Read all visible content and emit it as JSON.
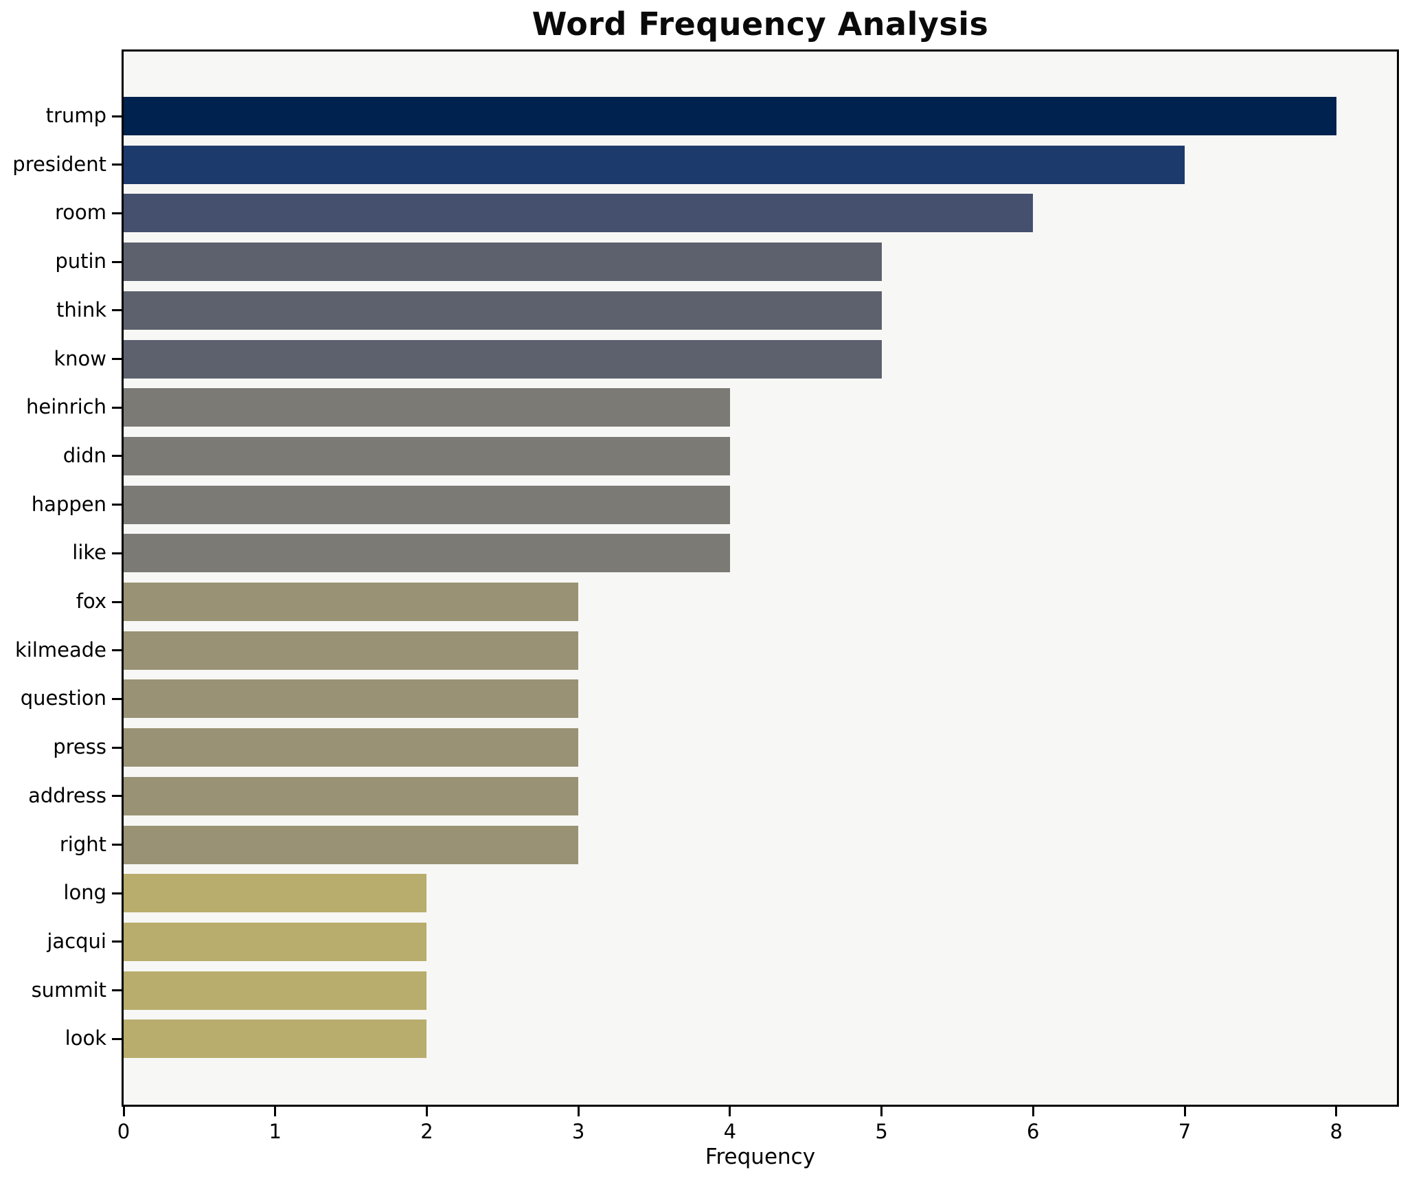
{
  "chart_data": {
    "type": "bar",
    "orientation": "horizontal",
    "title": "Word Frequency Analysis",
    "xlabel": "Frequency",
    "ylabel": "",
    "categories": [
      "trump",
      "president",
      "room",
      "putin",
      "think",
      "know",
      "heinrich",
      "didn",
      "happen",
      "like",
      "fox",
      "kilmeade",
      "question",
      "press",
      "address",
      "right",
      "long",
      "jacqui",
      "summit",
      "look"
    ],
    "values": [
      8,
      7,
      6,
      5,
      5,
      5,
      4,
      4,
      4,
      4,
      3,
      3,
      3,
      3,
      3,
      3,
      2,
      2,
      2,
      2
    ],
    "bar_colors": [
      "#00224e",
      "#1d3a6d",
      "#454f6e",
      "#5c616d",
      "#5c616d",
      "#5c616d",
      "#7b7a75",
      "#7b7a75",
      "#7b7a75",
      "#7b7a75",
      "#999274",
      "#999274",
      "#999274",
      "#999274",
      "#999274",
      "#999274",
      "#b8ad6c",
      "#b8ad6c",
      "#b8ad6c",
      "#b8ad6c"
    ],
    "xlim": [
      0,
      8.4
    ],
    "xticks": [
      0,
      1,
      2,
      3,
      4,
      5,
      6,
      7,
      8
    ],
    "grid": false,
    "plot_background": "#f7f7f5",
    "figure_background": "#ffffff",
    "spine_color": "#000000",
    "text_color": "#000000"
  }
}
